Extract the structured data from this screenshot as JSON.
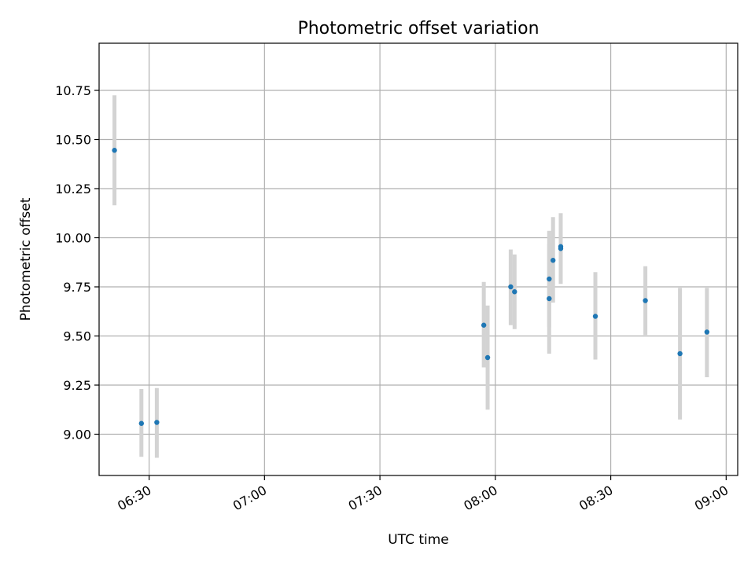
{
  "chart_data": {
    "type": "scatter",
    "title": "Photometric offset variation",
    "xlabel": "UTC time",
    "ylabel": "Photometric offset",
    "x_ticks": [
      "06:30",
      "07:00",
      "07:30",
      "08:00",
      "08:30",
      "09:00"
    ],
    "y_ticks": [
      "9.00",
      "9.25",
      "9.50",
      "9.75",
      "10.00",
      "10.25",
      "10.50",
      "10.75"
    ],
    "ylim": [
      8.79,
      10.99
    ],
    "xlim": [
      "06:17",
      "09:03"
    ],
    "grid": true,
    "points": [
      {
        "x": "06:21",
        "y": 10.445,
        "err_low": 10.165,
        "err_high": 10.725
      },
      {
        "x": "06:28",
        "y": 9.055,
        "err_low": 8.885,
        "err_high": 9.23
      },
      {
        "x": "06:32",
        "y": 9.06,
        "err_low": 8.88,
        "err_high": 9.235
      },
      {
        "x": "07:57",
        "y": 9.555,
        "err_low": 9.34,
        "err_high": 9.775
      },
      {
        "x": "07:58",
        "y": 9.39,
        "err_low": 9.125,
        "err_high": 9.655
      },
      {
        "x": "08:04",
        "y": 9.75,
        "err_low": 9.555,
        "err_high": 9.94
      },
      {
        "x": "08:05",
        "y": 9.725,
        "err_low": 9.535,
        "err_high": 9.915
      },
      {
        "x": "08:14",
        "y": 9.69,
        "err_low": 9.41,
        "err_high": 9.97
      },
      {
        "x": "08:14",
        "y": 9.79,
        "err_low": 9.545,
        "err_high": 10.035
      },
      {
        "x": "08:15",
        "y": 9.885,
        "err_low": 9.67,
        "err_high": 10.105
      },
      {
        "x": "08:17",
        "y": 9.955,
        "err_low": 9.775,
        "err_high": 10.125
      },
      {
        "x": "08:17",
        "y": 9.945,
        "err_low": 9.765,
        "err_high": 10.12
      },
      {
        "x": "08:26",
        "y": 9.6,
        "err_low": 9.38,
        "err_high": 9.825
      },
      {
        "x": "08:39",
        "y": 9.68,
        "err_low": 9.505,
        "err_high": 9.855
      },
      {
        "x": "08:48",
        "y": 9.41,
        "err_low": 9.075,
        "err_high": 9.745
      },
      {
        "x": "08:55",
        "y": 9.52,
        "err_low": 9.29,
        "err_high": 9.745
      }
    ],
    "colors": {
      "point": "#1f77b4",
      "errorbar": "#d3d3d3",
      "grid": "#b0b0b0"
    }
  }
}
